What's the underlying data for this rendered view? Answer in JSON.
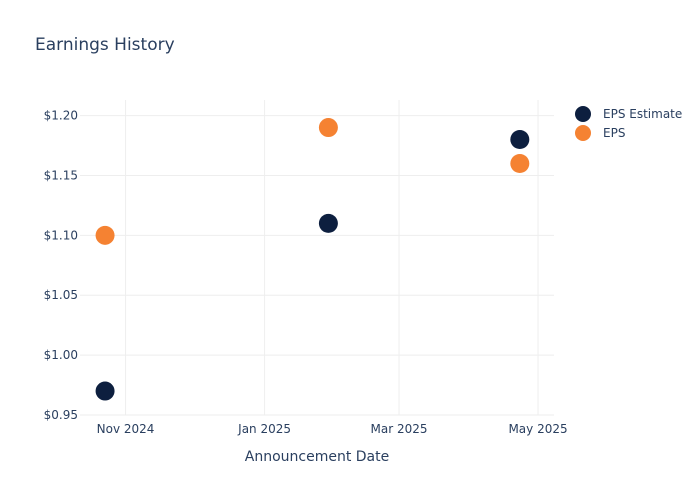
{
  "chart_data": {
    "type": "scatter",
    "title": "Earnings History",
    "xlabel": "Announcement Date",
    "ylabel": "",
    "x_ticks": [
      {
        "label": "Nov 2024",
        "date": "2024-11-01"
      },
      {
        "label": "Jan 2025",
        "date": "2025-01-01"
      },
      {
        "label": "Mar 2025",
        "date": "2025-03-01"
      },
      {
        "label": "May 2025",
        "date": "2025-05-01"
      }
    ],
    "y_ticks": [
      {
        "label": "$0.95",
        "value": 0.95
      },
      {
        "label": "$1.00",
        "value": 1.0
      },
      {
        "label": "$1.05",
        "value": 1.05
      },
      {
        "label": "$1.10",
        "value": 1.1
      },
      {
        "label": "$1.15",
        "value": 1.15
      },
      {
        "label": "$1.20",
        "value": 1.2
      }
    ],
    "xlim": [
      "2024-10-12",
      "2025-05-08"
    ],
    "ylim": [
      0.95,
      1.213
    ],
    "grid": true,
    "legend_position": "top-right",
    "series": [
      {
        "name": "EPS Estimate",
        "color": "#0d1f3f",
        "points": [
          {
            "x": "2024-10-23",
            "y": 0.97
          },
          {
            "x": "2025-01-29",
            "y": 1.11
          },
          {
            "x": "2025-04-23",
            "y": 1.18
          }
        ]
      },
      {
        "name": "EPS",
        "color": "#f58232",
        "points": [
          {
            "x": "2024-10-23",
            "y": 1.1
          },
          {
            "x": "2025-01-29",
            "y": 1.19
          },
          {
            "x": "2025-04-23",
            "y": 1.16
          }
        ]
      }
    ]
  }
}
